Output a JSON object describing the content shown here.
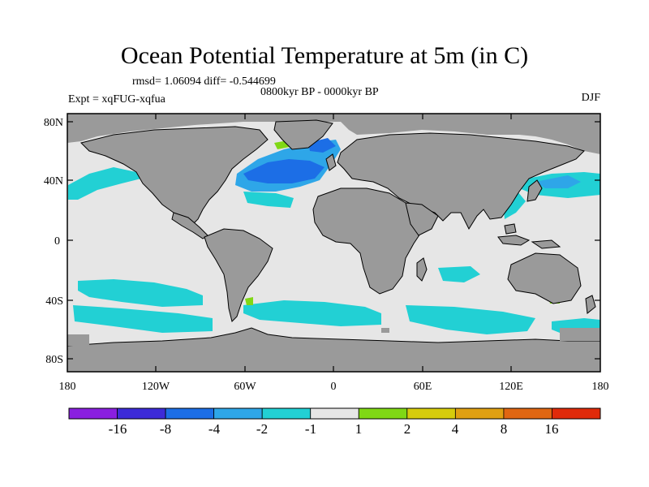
{
  "title": "Ocean Potential Temperature at 5m (in C)",
  "stats": "rmsd= 1.06094 diff= -0.544699",
  "period": "0800kyr BP - 0000kyr BP",
  "experiment": "Expt = xqFUG-xqfua",
  "season": "DJF",
  "lat_ticks": [
    "80N",
    "40N",
    "0",
    "40S",
    "80S"
  ],
  "lon_ticks": [
    "180",
    "120W",
    "60W",
    "0",
    "60E",
    "120E",
    "180"
  ],
  "colorbar": {
    "labels": [
      "-16",
      "-8",
      "-4",
      "-2",
      "-1",
      "1",
      "2",
      "4",
      "8",
      "16"
    ],
    "colors": [
      "#8a1fe0",
      "#3d2bd8",
      "#1c6ee6",
      "#2ea6e8",
      "#22d0d4",
      "#e6e6e6",
      "#80d815",
      "#d6cc0c",
      "#e0a012",
      "#e06612",
      "#e02a0a"
    ]
  },
  "palette": {
    "ocean_neutral": "#e6e6e6",
    "land": "#9a9a9a",
    "cool_light": "#22d0d4",
    "cool_mid": "#2ea6e8",
    "cool_dark": "#1c6ee6",
    "warm_light": "#80d815"
  }
}
